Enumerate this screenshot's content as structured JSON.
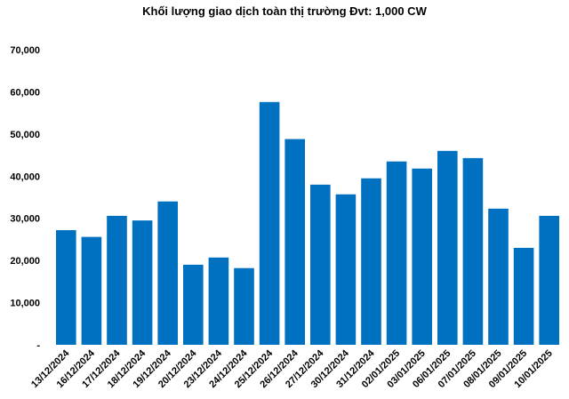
{
  "chart_data": {
    "type": "bar",
    "title": "Khối lượng giao dịch toàn thị trường Đvt: 1,000 CW",
    "xlabel": "",
    "ylabel": "",
    "ylim": [
      0,
      70000
    ],
    "yticks": [
      0,
      10000,
      20000,
      30000,
      40000,
      50000,
      60000,
      70000
    ],
    "ytick_labels": [
      "-",
      "10,000",
      "20,000",
      "30,000",
      "40,000",
      "50,000",
      "60,000",
      "70,000"
    ],
    "grid": false,
    "legend": "none",
    "bar_color": "#0070C0",
    "categories": [
      "13/12/2024",
      "16/12/2024",
      "17/12/2024",
      "18/12/2024",
      "19/12/2024",
      "20/12/2024",
      "23/12/2024",
      "24/12/2024",
      "25/12/2024",
      "26/12/2024",
      "27/12/2024",
      "30/12/2024",
      "31/12/2024",
      "02/01/2025",
      "03/01/2025",
      "06/01/2025",
      "07/01/2025",
      "08/01/2025",
      "09/01/2025",
      "10/01/2025"
    ],
    "values": [
      27200,
      25600,
      30600,
      29500,
      34000,
      19000,
      20700,
      18200,
      57600,
      48800,
      38000,
      35700,
      39500,
      43500,
      41800,
      46000,
      44300,
      32300,
      23000,
      30600
    ]
  }
}
